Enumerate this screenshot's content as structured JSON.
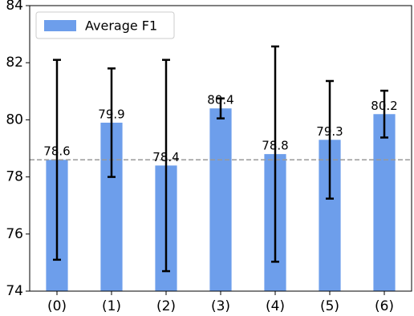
{
  "chart_data": {
    "type": "bar",
    "categories": [
      "(0)",
      "(1)",
      "(2)",
      "(3)",
      "(4)",
      "(5)",
      "(6)"
    ],
    "series": [
      {
        "name": "Average F1",
        "color": "#6d9eeb",
        "values": [
          78.6,
          79.9,
          78.4,
          80.4,
          78.8,
          79.3,
          80.2
        ],
        "errors": [
          3.5,
          1.9,
          3.7,
          0.35,
          3.77,
          2.06,
          0.82
        ]
      }
    ],
    "ylim": [
      74,
      84
    ],
    "yticks": [
      74,
      76,
      78,
      80,
      82,
      84
    ],
    "hline": 78.6,
    "hline_color": "#999999",
    "legend": "upper left",
    "show_value_labels": true
  }
}
